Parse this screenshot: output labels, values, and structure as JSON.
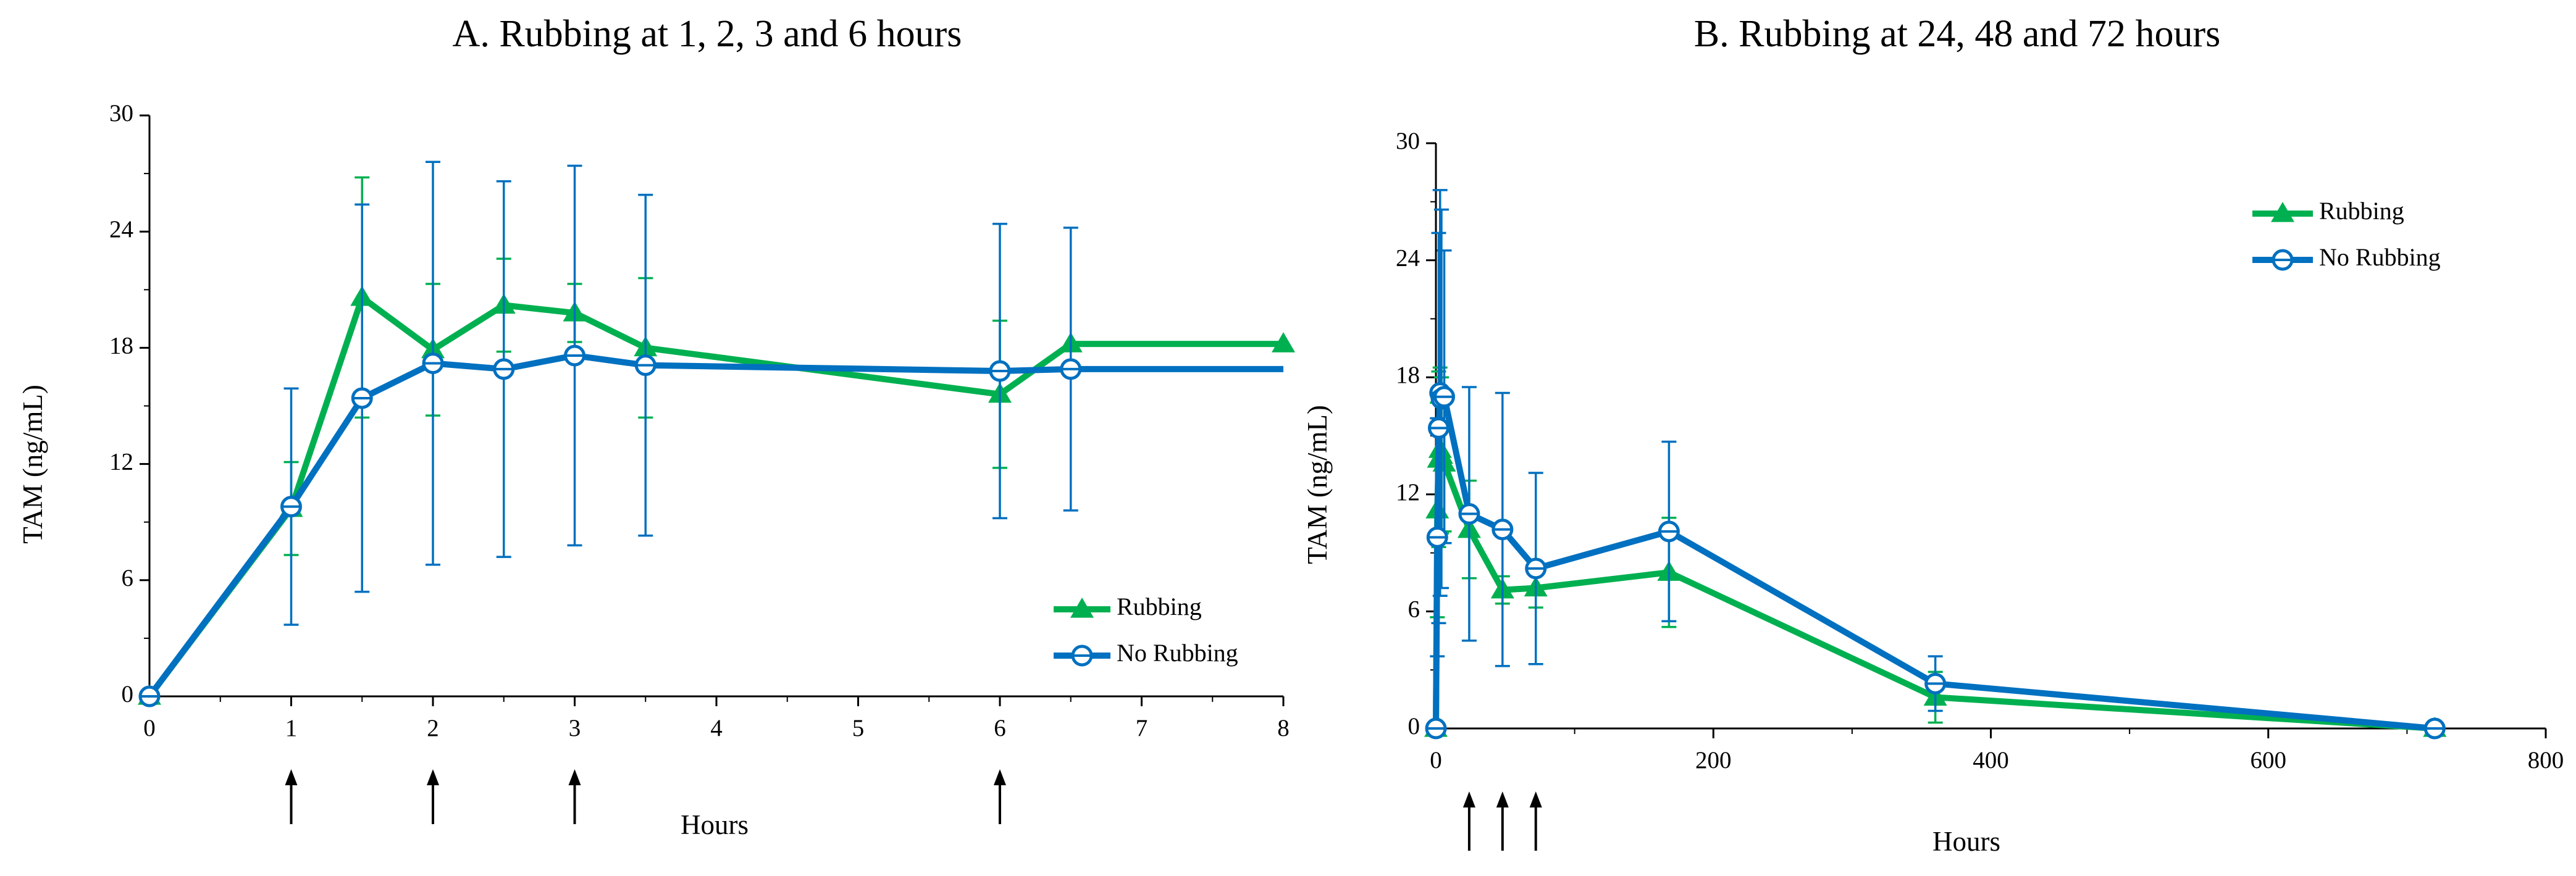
{
  "colors": {
    "rubbing": "#00B050",
    "no_rubbing": "#0070C0",
    "axis": "#000000"
  },
  "chart_data": [
    {
      "panel": "A",
      "type": "line",
      "title": "A.  Rubbing at 1, 2, 3 and 6 hours",
      "xlabel": "Hours",
      "ylabel": "TAM (ng/mL)",
      "xlim": [
        0,
        8
      ],
      "ylim": [
        0,
        30
      ],
      "xticks": [
        0,
        1,
        2,
        3,
        4,
        5,
        6,
        7,
        8
      ],
      "yticks": [
        0,
        6,
        12,
        18,
        24,
        30
      ],
      "grid": false,
      "legend_position": "bottom-right",
      "series": [
        {
          "name": "Rubbing",
          "marker": "triangle",
          "x": [
            0,
            1,
            1.5,
            2,
            2.5,
            3,
            3.5,
            6,
            6.5,
            8
          ],
          "y": [
            0,
            9.7,
            20.6,
            17.9,
            20.2,
            19.8,
            18.0,
            15.6,
            18.2,
            18.2
          ],
          "err": [
            null,
            2.4,
            6.2,
            3.4,
            2.4,
            1.5,
            3.6,
            3.8,
            null,
            null
          ]
        },
        {
          "name": "No Rubbing",
          "marker": "open-circle",
          "x": [
            0,
            1,
            1.5,
            2,
            2.5,
            3,
            3.5,
            6,
            6.5,
            8
          ],
          "y": [
            0,
            9.8,
            15.4,
            17.2,
            16.9,
            17.6,
            17.1,
            16.8,
            16.9,
            16.9
          ],
          "err": [
            null,
            6.1,
            10.0,
            10.4,
            9.7,
            9.8,
            8.8,
            7.6,
            7.3,
            null
          ]
        }
      ],
      "annotations": [
        {
          "type": "arrow-up",
          "x": 1
        },
        {
          "type": "arrow-up",
          "x": 2
        },
        {
          "type": "arrow-up",
          "x": 3
        },
        {
          "type": "arrow-up",
          "x": 6
        }
      ]
    },
    {
      "panel": "B",
      "type": "line",
      "title": "B.  Rubbing at 24, 48 and 72 hours",
      "xlabel": "Hours",
      "ylabel": "TAM (ng/mL)",
      "xlim": [
        0,
        800
      ],
      "ylim": [
        0,
        30
      ],
      "xticks": [
        0,
        200,
        400,
        600,
        800
      ],
      "yticks": [
        0,
        6,
        12,
        18,
        24,
        30
      ],
      "grid": false,
      "legend_position": "top-right",
      "series": [
        {
          "name": "Rubbing",
          "marker": "triangle",
          "x": [
            0,
            1,
            2,
            3,
            4,
            6,
            24,
            48,
            72,
            168,
            360,
            720
          ],
          "y": [
            0,
            11.2,
            13.8,
            14.3,
            14.0,
            13.6,
            10.2,
            7.1,
            7.2,
            8.0,
            1.6,
            0
          ],
          "err": [
            null,
            5.5,
            4.5,
            4.2,
            4.0,
            3.5,
            2.5,
            0.7,
            1.0,
            2.8,
            1.3,
            null
          ]
        },
        {
          "name": "No Rubbing",
          "marker": "open-circle",
          "x": [
            0,
            1,
            2,
            3,
            4,
            6,
            24,
            48,
            72,
            168,
            360,
            720
          ],
          "y": [
            0,
            9.8,
            15.4,
            17.2,
            16.9,
            17.0,
            11.0,
            10.2,
            8.2,
            10.1,
            2.3,
            0
          ],
          "err": [
            null,
            6.1,
            10.0,
            10.4,
            9.7,
            7.5,
            6.5,
            7.0,
            4.9,
            4.6,
            1.4,
            null
          ]
        }
      ],
      "annotations": [
        {
          "type": "arrow-up",
          "x": 24
        },
        {
          "type": "arrow-up",
          "x": 48
        },
        {
          "type": "arrow-up",
          "x": 72
        }
      ]
    }
  ]
}
